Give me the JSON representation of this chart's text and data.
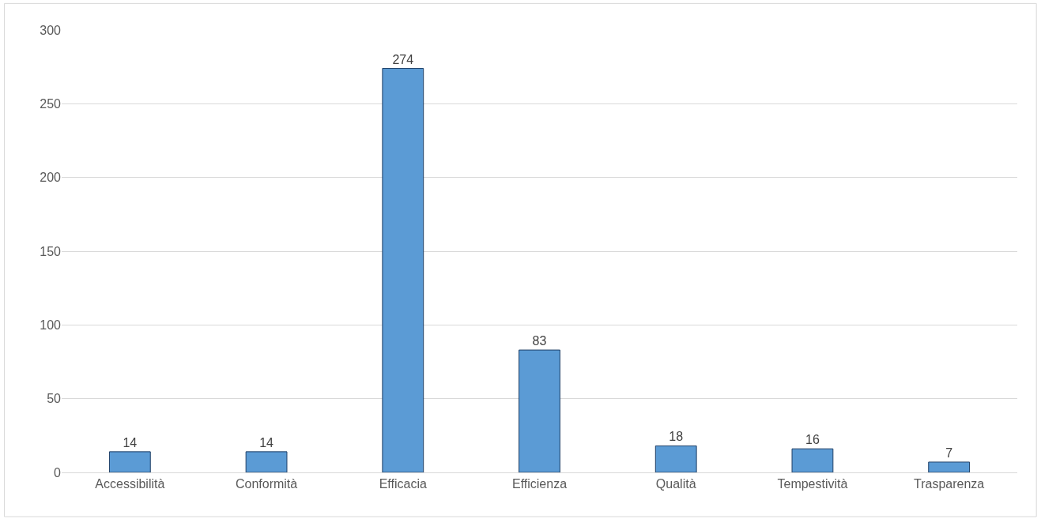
{
  "chart_data": {
    "type": "bar",
    "categories": [
      "Accessibilità",
      "Conformità",
      "Efficacia",
      "Efficienza",
      "Qualità",
      "Tempestività",
      "Trasparenza"
    ],
    "values": [
      14,
      14,
      274,
      83,
      18,
      16,
      7
    ],
    "color": "#5b9bd5",
    "ylim": [
      0,
      300
    ],
    "yticks": [
      0,
      50,
      100,
      150,
      200,
      250,
      300
    ],
    "grid": "y",
    "data_labels": true
  }
}
